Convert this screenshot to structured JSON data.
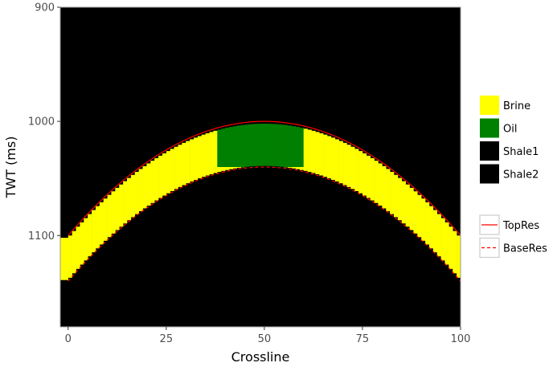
{
  "chart_data": {
    "type": "heatmap",
    "title": "",
    "xlabel": "Crossline",
    "ylabel": "TWT (ms)",
    "xlim": [
      -2,
      100
    ],
    "ylim": [
      900,
      1180
    ],
    "y_reversed": true,
    "x_ticks": [
      {
        "value": 0,
        "label": "0"
      },
      {
        "value": 25,
        "label": "25"
      },
      {
        "value": 50,
        "label": "50"
      },
      {
        "value": 75,
        "label": "75"
      },
      {
        "value": 100,
        "label": "100"
      }
    ],
    "y_ticks": [
      {
        "value": 900,
        "label": "900"
      },
      {
        "value": 1000,
        "label": "1000"
      },
      {
        "value": 1100,
        "label": "1100"
      }
    ],
    "fill_legend": [
      {
        "name": "Brine",
        "color": "#ffff00"
      },
      {
        "name": "Oil",
        "color": "#008000"
      },
      {
        "name": "Shale1",
        "color": "#000000"
      },
      {
        "name": "Shale2",
        "color": "#000000"
      }
    ],
    "line_legend": [
      {
        "name": "TopRes",
        "color": "#ff0000",
        "dash": "solid"
      },
      {
        "name": "BaseRes",
        "color": "#ff0000",
        "dash": "dashed"
      }
    ],
    "background_facies": "Shale1",
    "reservoir": {
      "apex_crossline": 50,
      "top_apex_twt": 1000,
      "top_edge_twt": 1100,
      "base_apex_twt": 1040,
      "base_edge_twt": 1140,
      "oil_water_contact_twt": 1040,
      "oil_crossline_range": [
        38,
        60
      ]
    },
    "series": [
      {
        "name": "TopRes",
        "x": [
          0,
          10,
          20,
          30,
          40,
          50,
          60,
          70,
          80,
          90,
          100
        ],
        "y": [
          1100,
          1064,
          1036,
          1016,
          1004,
          1000,
          1004,
          1016,
          1036,
          1064,
          1100
        ]
      },
      {
        "name": "BaseRes",
        "x": [
          0,
          10,
          20,
          30,
          40,
          50,
          60,
          70,
          80,
          90,
          100
        ],
        "y": [
          1140,
          1104,
          1076,
          1056,
          1044,
          1040,
          1044,
          1056,
          1076,
          1104,
          1140
        ]
      }
    ]
  }
}
